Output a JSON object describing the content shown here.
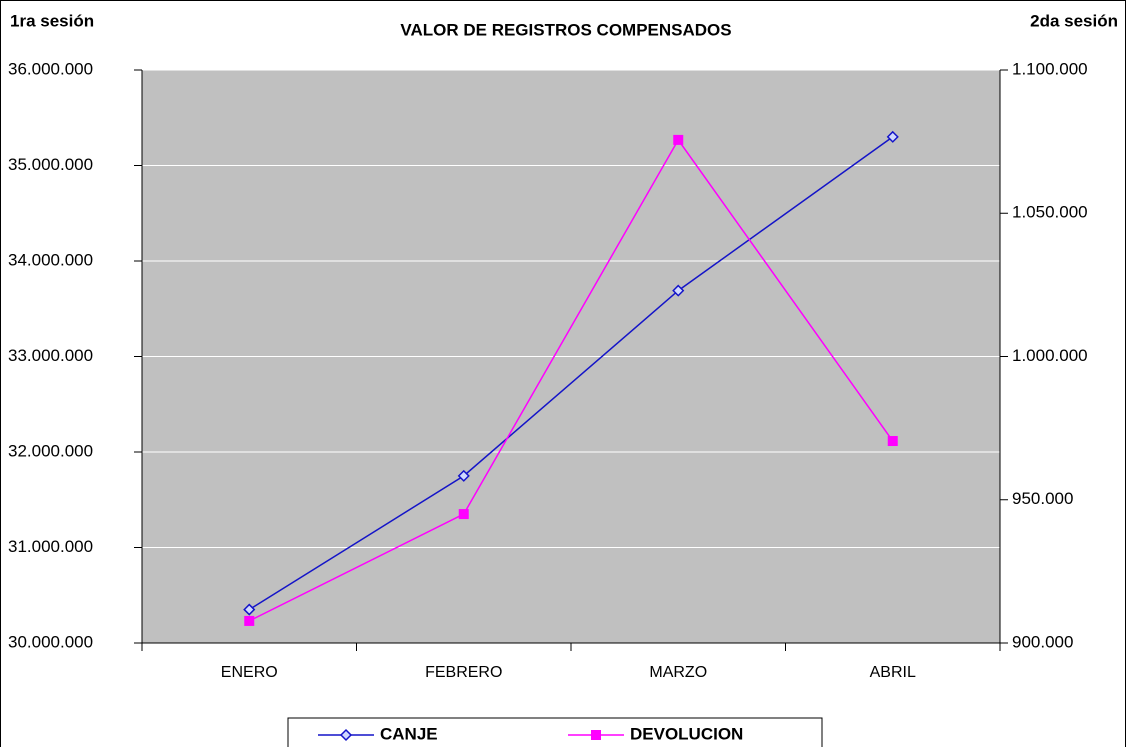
{
  "chart_data": {
    "type": "line",
    "title": "VALOR DE REGISTROS COMPENSADOS",
    "ylabel": "1ra sesión",
    "y2label": "2da sesión",
    "categories": [
      "ENERO",
      "FEBRERO",
      "MARZO",
      "ABRIL"
    ],
    "series": [
      {
        "name": "CANJE",
        "color": "#1414c8",
        "marker": "diamond",
        "values": [
          30350000,
          31750000,
          33690000,
          35300000
        ]
      },
      {
        "name": "DEVOLUCION",
        "color": "#ff00ff",
        "marker": "square",
        "axis": "y2",
        "values": [
          907700,
          945000,
          1075600,
          970500
        ]
      }
    ],
    "ylim": [
      30000000,
      36000000
    ],
    "yticks": [
      {
        "value": 30000000,
        "label": "30.000.000"
      },
      {
        "value": 31000000,
        "label": "31.000.000"
      },
      {
        "value": 32000000,
        "label": "32.000.000"
      },
      {
        "value": 33000000,
        "label": "33.000.000"
      },
      {
        "value": 34000000,
        "label": "34.000.000"
      },
      {
        "value": 35000000,
        "label": "35.000.000"
      },
      {
        "value": 36000000,
        "label": "36.000.000"
      }
    ],
    "y2lim": [
      900000,
      1100000
    ],
    "y2ticks": [
      {
        "value": 900000,
        "label": "900.000"
      },
      {
        "value": 950000,
        "label": "950.000"
      },
      {
        "value": 1000000,
        "label": "1.000.000"
      },
      {
        "value": 1050000,
        "label": "1.050.000"
      },
      {
        "value": 1100000,
        "label": "1.100.000"
      }
    ],
    "grid": true,
    "legend": "bottom"
  }
}
